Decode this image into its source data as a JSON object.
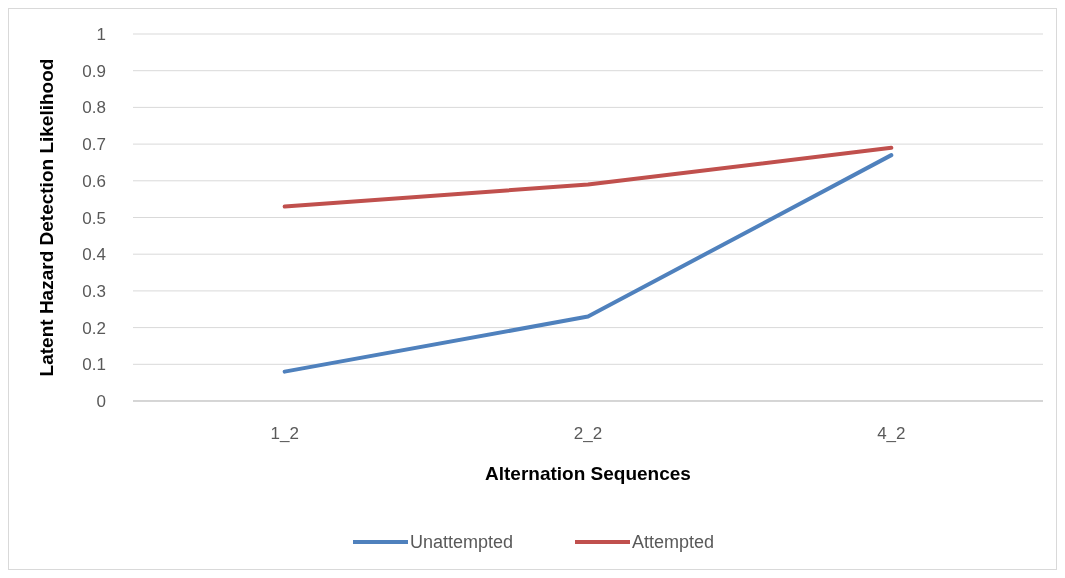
{
  "chart_data": {
    "type": "line",
    "xlabel": "Alternation Sequences",
    "ylabel": "Latent Hazard Detection Likelihood",
    "categories": [
      "1_2",
      "2_2",
      "4_2"
    ],
    "series": [
      {
        "name": "Unattempted",
        "color": "#4f81bd",
        "values": [
          0.08,
          0.23,
          0.67
        ]
      },
      {
        "name": "Attempted",
        "color": "#c0504d",
        "values": [
          0.53,
          0.59,
          0.69
        ]
      }
    ],
    "ylim": [
      0,
      1
    ],
    "yticks": [
      0,
      0.1,
      0.2,
      0.3,
      0.4,
      0.5,
      0.6,
      0.7,
      0.8,
      0.9,
      1
    ],
    "grid": "y",
    "legend": "bottom",
    "marker": "none",
    "line_style": "solid"
  }
}
